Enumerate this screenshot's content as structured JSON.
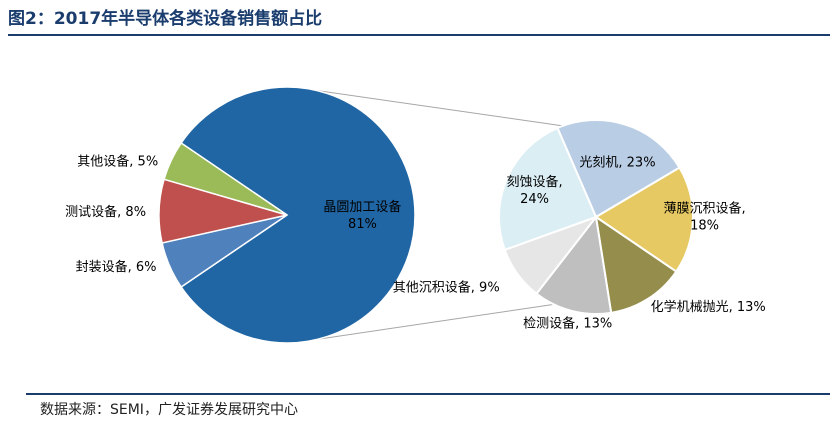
{
  "title": "图2：2017年半导体各类设备销售额占比",
  "source": "数据来源：SEMI，广发证券发展研究中心",
  "chart_data": [
    {
      "type": "pie",
      "name": "main",
      "slices": [
        {
          "label": "晶圆加工设备",
          "value": 81,
          "color": "#2166a4"
        },
        {
          "label": "封装设备",
          "value": 6,
          "color": "#4f81bd"
        },
        {
          "label": "测试设备",
          "value": 8,
          "color": "#c0504d"
        },
        {
          "label": "其他设备",
          "value": 5,
          "color": "#9bbb59"
        }
      ]
    },
    {
      "type": "pie",
      "name": "breakdown",
      "slices": [
        {
          "label": "光刻机",
          "value": 23,
          "color": "#b9cde5"
        },
        {
          "label": "薄膜沉积设备",
          "value": 18,
          "color": "#e6c963"
        },
        {
          "label": "化学机械抛光",
          "value": 13,
          "color": "#958d4b"
        },
        {
          "label": "检测设备",
          "value": 13,
          "color": "#bfbfbf"
        },
        {
          "label": "其他沉积设备",
          "value": 9,
          "color": "#e6e6e6"
        },
        {
          "label": "刻蚀设备",
          "value": 24,
          "color": "#dbeef4"
        }
      ]
    }
  ]
}
